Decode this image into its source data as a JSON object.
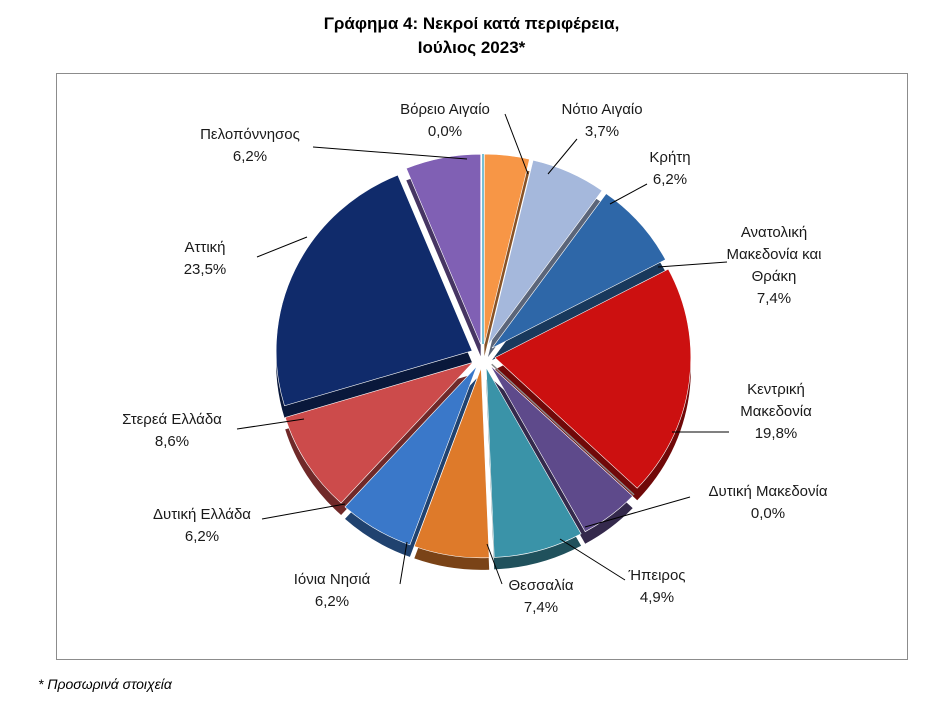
{
  "chart_data": {
    "type": "pie",
    "title_lines": [
      "Γράφημα 4: Νεκροί κατά περιφέρεια,",
      "Ιούλιος 2023*"
    ],
    "slices": [
      {
        "label_lines": [
          "Βόρειο Αιγαίο"
        ],
        "value": 0.0,
        "display": "0,0%",
        "color": "#4bacc6"
      },
      {
        "label_lines": [
          "Νότιο Αιγαίο"
        ],
        "value": 3.7,
        "display": "3,7%",
        "color": "#f79646"
      },
      {
        "label_lines": [
          "Κρήτη"
        ],
        "value": 6.2,
        "display": "6,2%",
        "color": "#a5b8dc"
      },
      {
        "label_lines": [
          "Ανατολική",
          "Μακεδονία και",
          "Θράκη"
        ],
        "value": 7.4,
        "display": "7,4%",
        "color": "#2e67a8"
      },
      {
        "label_lines": [
          "Κεντρική",
          "Μακεδονία"
        ],
        "value": 19.8,
        "display": "19,8%",
        "color": "#cc1010"
      },
      {
        "label_lines": [
          "Δυτική Μακεδονία"
        ],
        "value": 0.0,
        "display": "0,0%",
        "color": "#8a8a8a"
      },
      {
        "label_lines": [
          "Ήπειρος"
        ],
        "value": 4.9,
        "display": "4,9%",
        "color": "#5e4a8b"
      },
      {
        "label_lines": [
          "Θεσσαλία"
        ],
        "value": 7.4,
        "display": "7,4%",
        "color": "#3a93a8"
      },
      {
        "label_lines": [
          "Ιόνια Νησιά"
        ],
        "value": 6.2,
        "display": "6,2%",
        "color": "#de7a2a"
      },
      {
        "label_lines": [
          "Δυτική Ελλάδα"
        ],
        "value": 6.2,
        "display": "6,2%",
        "color": "#3a78c9"
      },
      {
        "label_lines": [
          "Στερεά Ελλάδα"
        ],
        "value": 8.6,
        "display": "8,6%",
        "color": "#cc4b4b"
      },
      {
        "label_lines": [
          "Αττική"
        ],
        "value": 23.5,
        "display": "23,5%",
        "color": "#102b6b"
      },
      {
        "label_lines": [
          "Πελοπόννησος"
        ],
        "value": 6.2,
        "display": "6,2%",
        "color": "#8060b4"
      }
    ]
  },
  "footnote": "* Προσωρινά στοιχεία"
}
